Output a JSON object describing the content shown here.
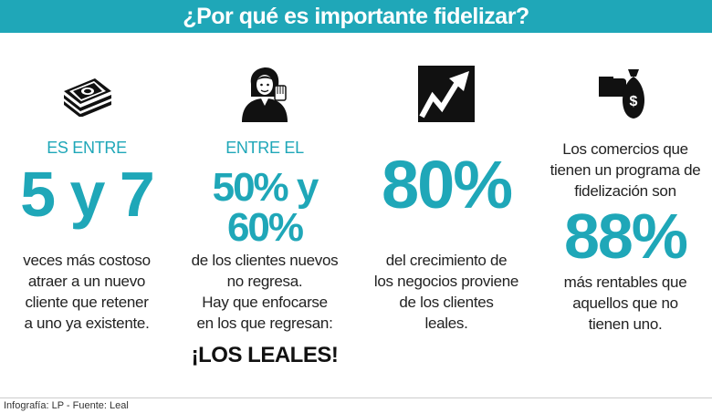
{
  "header": {
    "title": "¿Por qué es importante fidelizar?"
  },
  "colors": {
    "accent": "#1fa7b8",
    "text": "#222222"
  },
  "columns": [
    {
      "icon": "money-stack-icon",
      "kicker": "ES ENTRE",
      "big": "5 y 7",
      "lines": [
        "veces más costoso",
        "atraer a un nuevo",
        "cliente que retener",
        "a uno ya existente."
      ]
    },
    {
      "icon": "woman-stop-hand-icon",
      "kicker": "ENTRE EL",
      "big_line1": "50% y",
      "big_line2": "60%",
      "lines": [
        "de los clientes nuevos",
        "no regresa.",
        "Hay que enfocarse",
        "en los que regresan:"
      ],
      "emphasis": "¡LOS LEALES!"
    },
    {
      "icon": "growth-arrow-icon",
      "big": "80%",
      "lines": [
        "del crecimiento de",
        "los negocios proviene",
        "de los clientes",
        "leales."
      ]
    },
    {
      "icon": "money-bag-hand-icon",
      "intro_lines": [
        "Los comercios que",
        "tienen un programa de",
        "fidelización son"
      ],
      "big": "88%",
      "lines": [
        "más rentables que",
        "aquellos que no",
        "tienen uno."
      ]
    }
  ],
  "footer": {
    "credit": "Infografía: LP - Fuente: Leal"
  }
}
